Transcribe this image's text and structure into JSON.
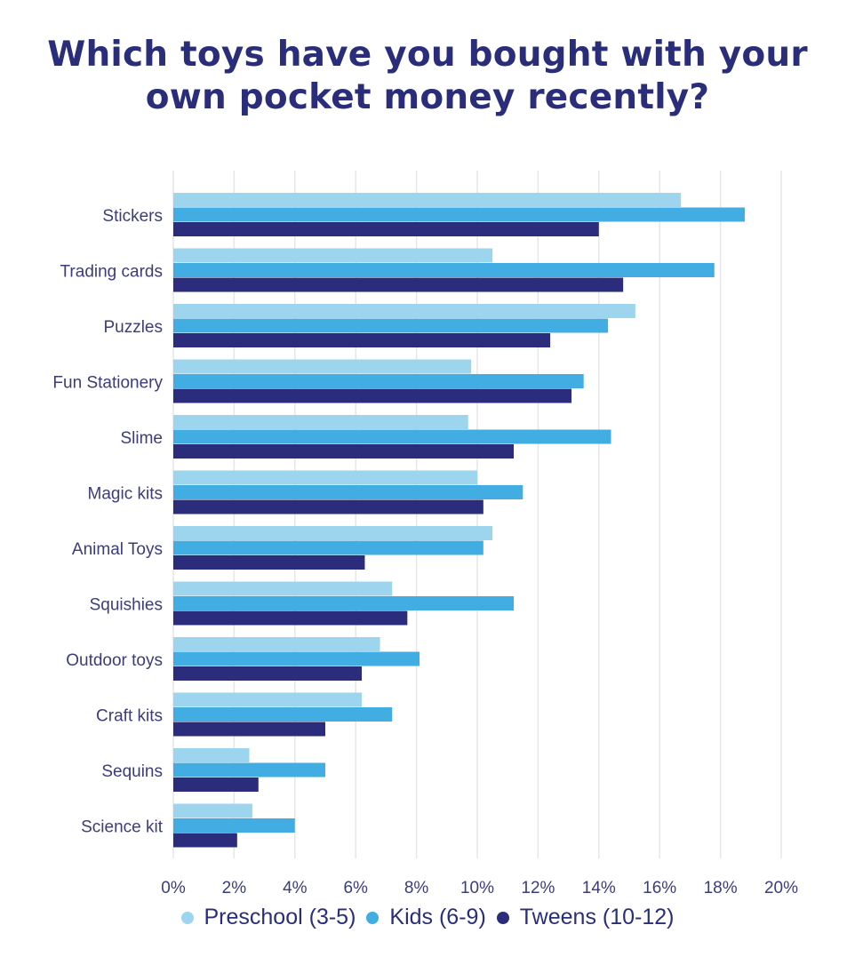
{
  "title_line1": "Which toys have you bought with your",
  "title_line2": "own pocket money recently?",
  "colors": {
    "title": "#2a2e7a",
    "label": "#3b3d7a",
    "grid": "#e6e6ea",
    "preschool": "#9dd5ee",
    "kids": "#41ade2",
    "tweens": "#2b2d7c"
  },
  "chart_data": {
    "type": "bar",
    "orientation": "horizontal",
    "categories": [
      "Stickers",
      "Trading cards",
      "Puzzles",
      "Fun Stationery",
      "Slime",
      "Magic kits",
      "Animal Toys",
      "Squishies",
      "Outdoor toys",
      "Craft kits",
      "Sequins",
      "Science kit"
    ],
    "series": [
      {
        "name": "Preschool (3-5)",
        "values": [
          16.7,
          10.5,
          15.2,
          9.8,
          9.7,
          10.0,
          10.5,
          7.2,
          6.8,
          6.2,
          2.5,
          2.6
        ]
      },
      {
        "name": "Kids (6-9)",
        "values": [
          18.8,
          17.8,
          14.3,
          13.5,
          14.4,
          11.5,
          10.2,
          11.2,
          8.1,
          7.2,
          5.0,
          4.0
        ]
      },
      {
        "name": "Tweens (10-12)",
        "values": [
          14.0,
          14.8,
          12.4,
          13.1,
          11.2,
          10.2,
          6.3,
          7.7,
          6.2,
          5.0,
          2.8,
          2.1
        ]
      }
    ],
    "xticks": [
      "0%",
      "2%",
      "4%",
      "6%",
      "8%",
      "10%",
      "12%",
      "14%",
      "16%",
      "18%",
      "20%"
    ],
    "xlim": [
      0,
      20
    ],
    "grid": "vertical",
    "legend_position": "bottom"
  },
  "legend": {
    "items": [
      "Preschool (3-5)",
      "Kids (6-9)",
      "Tweens (10-12)"
    ]
  }
}
